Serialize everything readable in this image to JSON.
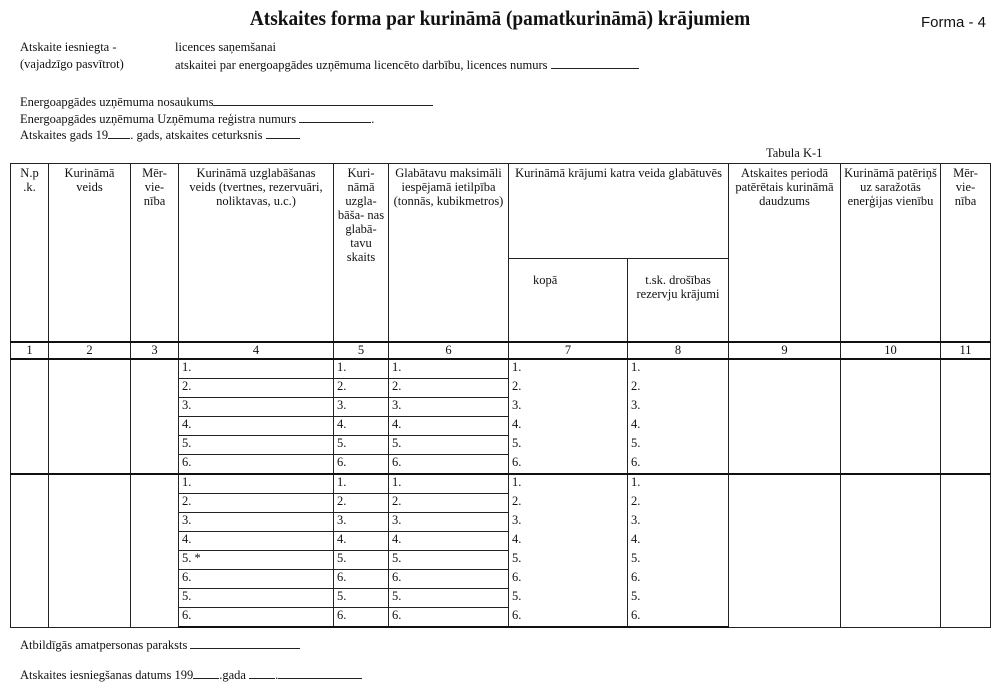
{
  "title": "Atskaites forma par kurināmā (pamatkurināmā) krājumiem",
  "form_label": "Forma - 4",
  "submitted": {
    "label": "Atskaite iesniegta -",
    "hint": "(vajadzīgo pasvītrot)",
    "option1": "licences saņemšanai",
    "option2": "atskaitei par energoapgādes uzņēmuma licencēto darbību, licences numurs"
  },
  "fields": {
    "company_name": "Energoapgādes uzņēmuma nosaukums",
    "register_no": "Energoapgādes uzņēmuma Uzņēmuma reģistra numurs",
    "year_prefix": "Atskaites gads 19",
    "year_suffix": ". gads, atskaites ceturksnis"
  },
  "table_label": "Tabula K-1",
  "headers": {
    "c1": "N.p .k.",
    "c2": "Kurināmā veids",
    "c3": "Mēr- vie- nība",
    "c4": "Kurināmā uzglabāšanas veids (tvertnes, rezervuāri, noliktavas, u.c.)",
    "c5": "Kuri- nāmā uzgla- bāša- nas glabā- tavu skaits",
    "c6": "Glabātavu maksimāli iespējamā ietilpība (tonnās, kubikmetros)",
    "c78": "Kurināmā krājumi katra veida glabātuvēs",
    "c7": "kopā",
    "c8": "t.sk. drošības rezervju krājumi",
    "c9": "Atskaites periodā patērētais kurināmā daudzums",
    "c10": "Kurināmā patēriņš uz saražotās enerģijas vienību",
    "c11": "Mēr- vie- nība"
  },
  "column_numbers": [
    "1",
    "2",
    "3",
    "4",
    "5",
    "6",
    "7",
    "8",
    "9",
    "10",
    "11"
  ],
  "groups": [
    {
      "rows": [
        [
          "1.",
          "1.",
          "1.",
          "1.",
          "1."
        ],
        [
          "2.",
          "2.",
          "2.",
          "2.",
          "2."
        ],
        [
          "3.",
          "3.",
          "3.",
          "3.",
          "3."
        ],
        [
          "4.",
          "4.",
          "4.",
          "4.",
          "4."
        ],
        [
          "5.",
          "5.",
          "5.",
          "5.",
          "5."
        ],
        [
          "6.",
          "6.",
          "6.",
          "6.",
          "6."
        ]
      ]
    },
    {
      "rows": [
        [
          "1.",
          "1.",
          "1.",
          "1.",
          "1."
        ],
        [
          "2.",
          "2.",
          "2.",
          "2.",
          "2."
        ],
        [
          "3.",
          "3.",
          "3.",
          "3.",
          "3."
        ],
        [
          "4.",
          "4.",
          "4.",
          "4.",
          "4."
        ],
        [
          "5.     *",
          "5.",
          "5.",
          "5.",
          "5."
        ],
        [
          "6.",
          "6.",
          "6.",
          "6.",
          "6."
        ],
        [
          "5.",
          "5.",
          "5.",
          "5.",
          "5."
        ],
        [
          "6.",
          "6.",
          "6.",
          "6.",
          "6."
        ]
      ]
    }
  ],
  "footer": {
    "signature": "Atbildīgās amatpersonas paraksts",
    "date_prefix": "Atskaites iesniegšanas datums   199",
    "date_mid": ".gada"
  }
}
